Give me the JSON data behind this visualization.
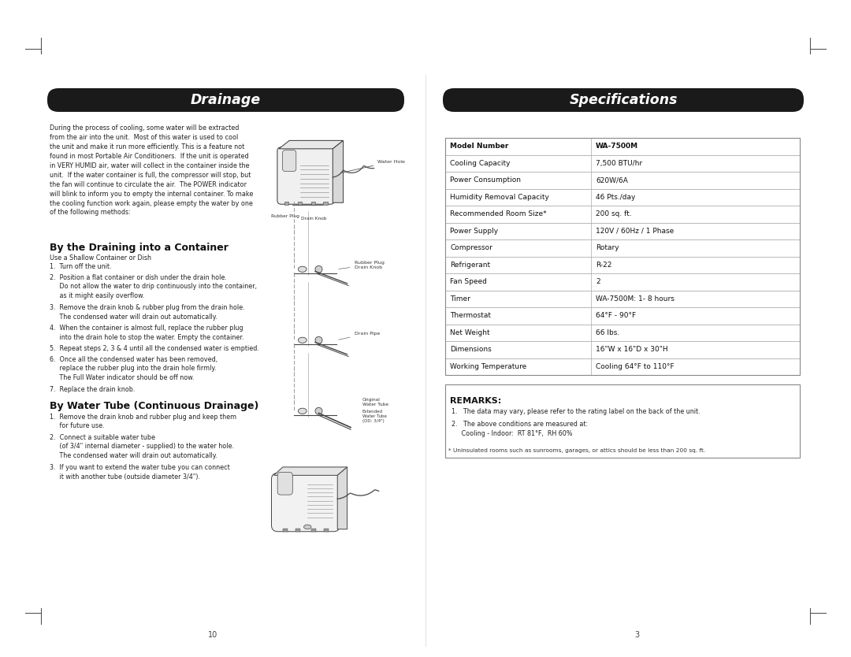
{
  "bg_color": "#ffffff",
  "header_bg": "#1a1a1a",
  "header_text_color": "#ffffff",
  "table_border_color": "#aaaaaa",
  "page_width": 10.8,
  "page_height": 8.34,
  "left_header": "Drainage",
  "right_header": "Specifications",
  "drainage_intro": "During the process of cooling, some water will be extracted\nfrom the air into the unit.  Most of this water is used to cool\nthe unit and make it run more efficiently. This is a feature not\nfound in most Portable Air Conditioners.  If the unit is operated\nin VERY HUMID air, water will collect in the container inside the\nunit.  If the water container is full, the compressor will stop, but\nthe fan will continue to circulate the air.  The POWER indicator\nwill blink to inform you to empty the internal container. To make\nthe cooling function work again, please empty the water by one\nof the following methods:",
  "section1_title": "By the Draining into a Container",
  "section1_subtitle": "Use a Shallow Container or Dish",
  "section1_steps": [
    "1.  Turn off the unit.",
    "2.  Position a flat container or dish under the drain hole.\n     Do not allow the water to drip continuously into the container,\n     as it might easily overflow.",
    "3.  Remove the drain knob & rubber plug from the drain hole.\n     The condensed water will drain out automatically.",
    "4.  When the container is almost full, replace the rubber plug\n     into the drain hole to stop the water. Empty the container.",
    "5.  Repeat steps 2, 3 & 4 until all the condensed water is emptied.",
    "6.  Once all the condensed water has been removed,\n     replace the rubber plug into the drain hole firmly.\n     The Full Water indicator should be off now.",
    "7.  Replace the drain knob."
  ],
  "section2_title": "By Water Tube (Continuous Drainage)",
  "section2_steps": [
    "1.  Remove the drain knob and rubber plug and keep them\n     for future use.",
    "2.  Connect a suitable water tube\n     (of 3/4\" internal diameter - supplied) to the water hole.\n     The condensed water will drain out automatically.",
    "3.  If you want to extend the water tube you can connect\n     it with another tube (outside diameter 3/4\")."
  ],
  "spec_rows": [
    [
      "Model Number",
      "WA-7500M",
      true
    ],
    [
      "Cooling Capacity",
      "7,500 BTU/hr",
      false
    ],
    [
      "Power Consumption",
      "620W/6A",
      false
    ],
    [
      "Humidity Removal Capacity",
      "46 Pts./day",
      false
    ],
    [
      "Recommended Room Size*",
      "200 sq. ft.",
      false
    ],
    [
      "Power Supply",
      "120V / 60Hz / 1 Phase",
      false
    ],
    [
      "Compressor",
      "Rotary",
      false
    ],
    [
      "Refrigerant",
      "R-22",
      false
    ],
    [
      "Fan Speed",
      "2",
      false
    ],
    [
      "Timer",
      "WA-7500M: 1- 8 hours",
      false
    ],
    [
      "Thermostat",
      "64°F - 90°F",
      false
    ],
    [
      "Net Weight",
      "66 lbs.",
      false
    ],
    [
      "Dimensions",
      "16\"W x 16\"D x 30\"H",
      false
    ],
    [
      "Working Temperature",
      "Cooling 64°F to 110°F",
      false
    ]
  ],
  "remarks_title": "REMARKS:",
  "remarks": [
    "1.   The data may vary, please refer to the rating label on the back of the unit.",
    "2.   The above conditions are measured at:\n     Cooling - Indoor:  RT 81°F,  RH 60%"
  ],
  "footnote": "* Uninsulated rooms such as sunrooms, garages, or attics should be less than 200 sq. ft.",
  "page_numbers": [
    "10",
    "3"
  ],
  "corner_marks_color": "#555555",
  "diagram_color": "#444444",
  "diagram_line_color": "#888888"
}
